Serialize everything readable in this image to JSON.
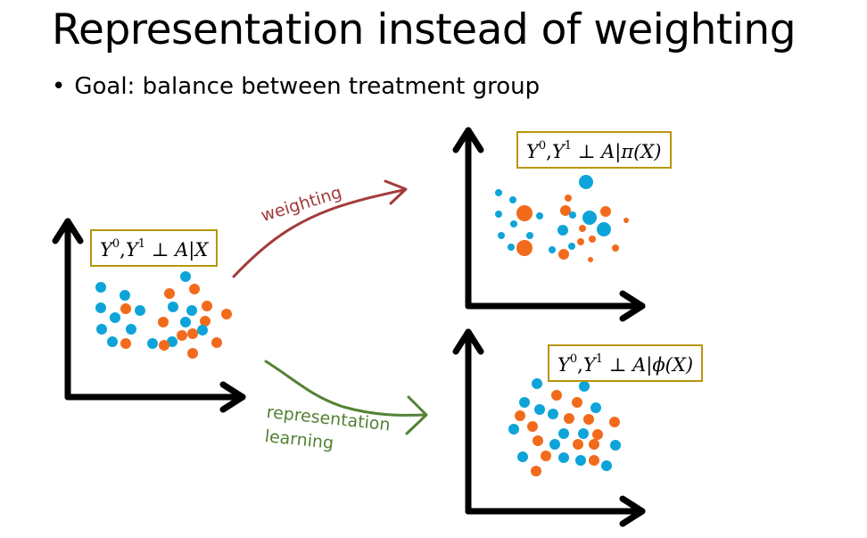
{
  "slide": {
    "title": "Representation instead of weighting",
    "bullet_symbol": "•",
    "bullet_text": "Goal: balance between treatment group"
  },
  "colors": {
    "treatment_a": "#0ea4d9",
    "treatment_b": "#f26b1d",
    "box_border": "#b8960c",
    "weighting_arrow": "#a33b3b",
    "representation_arrow": "#538234",
    "axis": "#000000"
  },
  "panels": {
    "original": {
      "formula": {
        "y0": "Y",
        "y0_sup": "0",
        "sep": ",",
        "y1": "Y",
        "y1_sup": "1",
        "indep": "⊥",
        "cond": "A|X"
      }
    },
    "weighted": {
      "formula": {
        "y0": "Y",
        "y0_sup": "0",
        "sep": ",",
        "y1": "Y",
        "y1_sup": "1",
        "indep": "⊥",
        "cond": "A|π(X)"
      }
    },
    "representation": {
      "formula": {
        "y0": "Y",
        "y0_sup": "0",
        "sep": ",",
        "y1": "Y",
        "y1_sup": "1",
        "indep": "⊥",
        "cond": "A|ϕ(X)"
      }
    }
  },
  "arrows": {
    "weighting_label": "weighting",
    "representation_label_line1": "representation",
    "representation_label_line2": "learning"
  }
}
